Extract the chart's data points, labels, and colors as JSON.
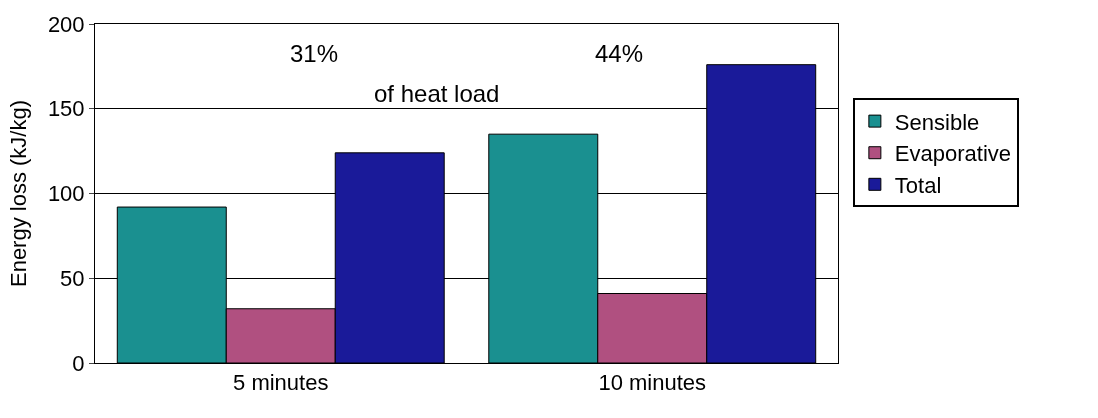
{
  "chart_data": {
    "type": "bar",
    "ylabel": "Energy loss (kJ/kg)",
    "categories": [
      "5 minutes",
      "10 minutes"
    ],
    "series": [
      {
        "name": "Sensible",
        "color": "#1a9090",
        "values": [
          92,
          135
        ]
      },
      {
        "name": "Evaporative",
        "color": "#b05080",
        "values": [
          32,
          41
        ]
      },
      {
        "name": "Total",
        "color": "#1a1a99",
        "values": [
          124,
          176
        ]
      }
    ],
    "ylim": [
      0,
      200
    ],
    "yticks": [
      0,
      50,
      100,
      150,
      200
    ],
    "grid": "y",
    "legend": "right",
    "annotations": [
      "31%",
      "of heat load",
      "44%"
    ]
  }
}
